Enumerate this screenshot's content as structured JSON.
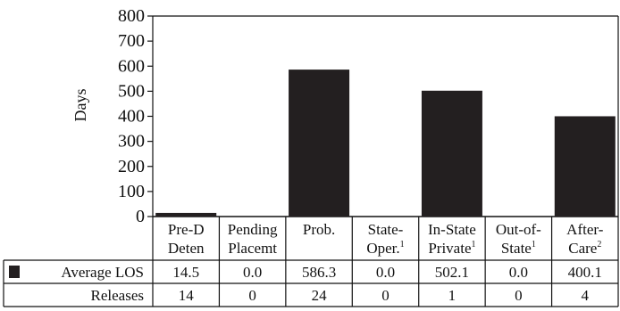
{
  "chart_data": {
    "type": "bar",
    "ylabel": "Days",
    "ylim": [
      0,
      800
    ],
    "yticks": [
      0,
      100,
      200,
      300,
      400,
      500,
      600,
      700,
      800
    ],
    "categories": [
      {
        "line1": "Pre-D",
        "line2": "Deten",
        "sup": ""
      },
      {
        "line1": "Pending",
        "line2": "Placemt",
        "sup": ""
      },
      {
        "line1": "Prob.",
        "line2": "",
        "sup": ""
      },
      {
        "line1": "State-",
        "line2": "Oper.",
        "sup": "1"
      },
      {
        "line1": "In-State",
        "line2": "Private",
        "sup": "1"
      },
      {
        "line1": "Out-of-",
        "line2": "State",
        "sup": "1"
      },
      {
        "line1": "After-",
        "line2": "Care",
        "sup": "2"
      }
    ],
    "series": [
      {
        "name": "Average LOS",
        "values": [
          14.5,
          0.0,
          586.3,
          0.0,
          502.1,
          0.0,
          400.1
        ],
        "display": [
          "14.5",
          "0.0",
          "586.3",
          "0.0",
          "502.1",
          "0.0",
          "400.1"
        ],
        "color": "#231f20"
      }
    ],
    "table_rows": [
      {
        "label": "Average LOS",
        "values": [
          "14.5",
          "0.0",
          "586.3",
          "0.0",
          "502.1",
          "0.0",
          "400.1"
        ]
      },
      {
        "label": "Releases",
        "values": [
          "14",
          "0",
          "24",
          "0",
          "1",
          "0",
          "4"
        ]
      }
    ],
    "grid": false,
    "legend": "in-table"
  }
}
